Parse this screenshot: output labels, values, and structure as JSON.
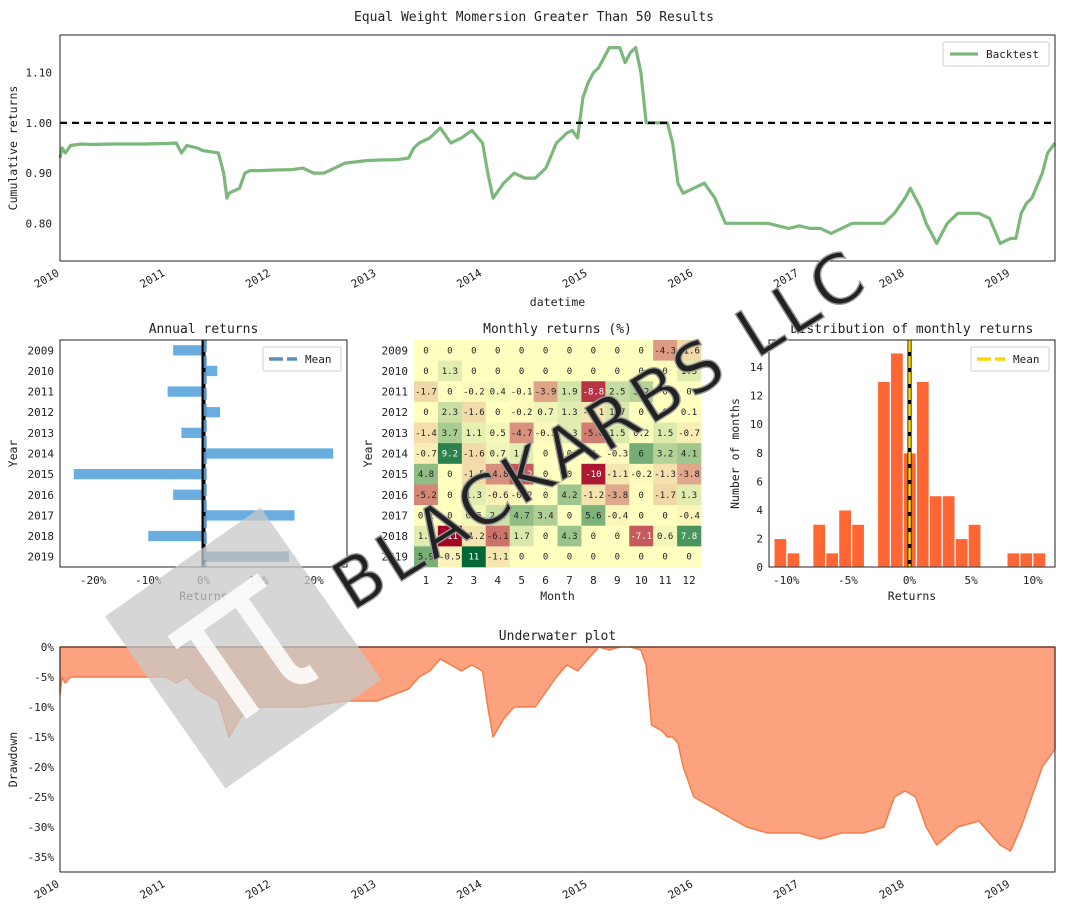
{
  "page_title": "Equal Weight Momersion Greater Than 50 Results",
  "watermark_text": "BLACKARBS LLC",
  "colors": {
    "backtest": "#7cb87c",
    "baseline": "#000000",
    "annual": "#6aaee0",
    "annual_mean": "#5a8fc0",
    "hist": "#ff6633",
    "hist_mean": "#ffd700",
    "underwater": "#fca27e",
    "underwater_edge": "#f47d4e",
    "heat_neg": "#a50026",
    "heat_mid": "#ffffbf",
    "heat_pos": "#006837"
  },
  "chart_data": [
    {
      "id": "cumulative",
      "type": "line",
      "title": "",
      "xlabel": "datetime",
      "ylabel": "Cumulative returns",
      "xlim": [
        2010.0,
        2019.42
      ],
      "ylim": [
        0.725,
        1.175
      ],
      "yticks": [
        0.8,
        0.9,
        1.0,
        1.1
      ],
      "ytick_labels": [
        "0.80",
        "0.90",
        "1.00",
        "1.10"
      ],
      "xticks": [
        2010,
        2011,
        2012,
        2013,
        2014,
        2015,
        2016,
        2017,
        2018,
        2019
      ],
      "xtick_labels": [
        "2010",
        "2011",
        "2012",
        "2013",
        "2014",
        "2015",
        "2016",
        "2017",
        "2018",
        "2019"
      ],
      "hline": 1.0,
      "legend": "top-right",
      "series": [
        {
          "name": "Backtest",
          "x": [
            2010.0,
            2010.02,
            2010.05,
            2010.1,
            2010.2,
            2010.3,
            2010.5,
            2010.8,
            2011.0,
            2011.1,
            2011.15,
            2011.2,
            2011.3,
            2011.35,
            2011.5,
            2011.55,
            2011.58,
            2011.6,
            2011.7,
            2011.75,
            2011.8,
            2011.9,
            2012.0,
            2012.2,
            2012.3,
            2012.4,
            2012.5,
            2012.7,
            2012.9,
            2013.0,
            2013.2,
            2013.3,
            2013.35,
            2013.4,
            2013.5,
            2013.55,
            2013.6,
            2013.7,
            2013.8,
            2013.9,
            2014.0,
            2014.05,
            2014.1,
            2014.2,
            2014.3,
            2014.4,
            2014.5,
            2014.6,
            2014.7,
            2014.75,
            2014.8,
            2014.85,
            2014.9,
            2014.95,
            2015.0,
            2015.05,
            2015.1,
            2015.2,
            2015.3,
            2015.35,
            2015.4,
            2015.45,
            2015.5,
            2015.55,
            2015.6,
            2015.7,
            2015.75,
            2015.8,
            2015.85,
            2015.9,
            2016.0,
            2016.1,
            2016.2,
            2016.3,
            2016.5,
            2016.7,
            2016.9,
            2017.0,
            2017.1,
            2017.2,
            2017.3,
            2017.5,
            2017.7,
            2017.8,
            2017.9,
            2018.0,
            2018.05,
            2018.1,
            2018.15,
            2018.2,
            2018.3,
            2018.4,
            2018.5,
            2018.6,
            2018.7,
            2018.8,
            2018.9,
            2019.0,
            2019.05,
            2019.1,
            2019.15,
            2019.2,
            2019.3,
            2019.35,
            2019.42
          ],
          "y": [
            0.93,
            0.95,
            0.94,
            0.955,
            0.958,
            0.957,
            0.958,
            0.958,
            0.959,
            0.96,
            0.94,
            0.955,
            0.95,
            0.945,
            0.94,
            0.9,
            0.85,
            0.86,
            0.87,
            0.9,
            0.905,
            0.905,
            0.906,
            0.907,
            0.91,
            0.9,
            0.9,
            0.92,
            0.925,
            0.926,
            0.927,
            0.93,
            0.95,
            0.96,
            0.97,
            0.98,
            0.99,
            0.96,
            0.97,
            0.985,
            0.96,
            0.9,
            0.85,
            0.88,
            0.9,
            0.89,
            0.89,
            0.91,
            0.96,
            0.97,
            0.98,
            0.985,
            0.97,
            1.05,
            1.08,
            1.1,
            1.11,
            1.15,
            1.15,
            1.12,
            1.14,
            1.15,
            1.1,
            1.0,
            1.0,
            1.0,
            1.0,
            0.96,
            0.88,
            0.86,
            0.87,
            0.88,
            0.85,
            0.8,
            0.8,
            0.8,
            0.79,
            0.795,
            0.79,
            0.79,
            0.78,
            0.8,
            0.8,
            0.8,
            0.82,
            0.85,
            0.87,
            0.85,
            0.83,
            0.8,
            0.76,
            0.8,
            0.82,
            0.82,
            0.82,
            0.81,
            0.76,
            0.77,
            0.77,
            0.82,
            0.84,
            0.85,
            0.9,
            0.94,
            0.96
          ]
        }
      ]
    },
    {
      "id": "annual",
      "type": "bar",
      "orientation": "horizontal",
      "title": "Annual returns",
      "xlabel": "Returns",
      "ylabel": "Year",
      "xlim": [
        -0.26,
        0.26
      ],
      "xticks": [
        -0.2,
        -0.1,
        0.0,
        0.1,
        0.2
      ],
      "xtick_labels": [
        "-20%",
        "-10%",
        "0%",
        "10%",
        "20%"
      ],
      "categories": [
        "2009",
        "2010",
        "2011",
        "2012",
        "2013",
        "2014",
        "2015",
        "2016",
        "2017",
        "2018",
        "2019"
      ],
      "values": [
        -0.055,
        0.025,
        -0.065,
        0.03,
        -0.04,
        0.235,
        -0.235,
        -0.055,
        0.165,
        -0.1,
        0.155
      ],
      "mean": 0.003,
      "legend_label": "Mean",
      "legend": "top-right"
    },
    {
      "id": "monthly",
      "type": "heatmap",
      "title": "Monthly returns (%)",
      "xlabel": "Month",
      "ylabel": "Year",
      "rows": [
        "2009",
        "2010",
        "2011",
        "2012",
        "2013",
        "2014",
        "2015",
        "2016",
        "2017",
        "2018",
        "2019"
      ],
      "cols": [
        "1",
        "2",
        "3",
        "4",
        "5",
        "6",
        "7",
        "8",
        "9",
        "10",
        "11",
        "12"
      ],
      "values": [
        [
          "0",
          "0",
          "0",
          "0",
          "0",
          "0",
          "0",
          "0",
          "0",
          "0",
          "-4.3",
          "-1.6"
        ],
        [
          "0",
          "1.3",
          "0",
          "0",
          "0",
          "0",
          "0",
          "0",
          "0",
          "0",
          "0",
          "1.3"
        ],
        [
          "-1.7",
          "0",
          "-0.2",
          "0.4",
          "-0.1",
          "-3.9",
          "1.9",
          "-8.8",
          "2.5",
          "3.2",
          "0",
          "0"
        ],
        [
          "0",
          "2.3",
          "-1.6",
          "0",
          "-0.2",
          "0.7",
          "1.3",
          "-1.1",
          "1.7",
          "0",
          "0",
          "0.1"
        ],
        [
          "-1.4",
          "3.7",
          "1.1",
          "0.5",
          "-4.7",
          "-0.3",
          "1.3",
          "-5.6",
          "1.5",
          "0.2",
          "1.5",
          "-0.7"
        ],
        [
          "-0.7",
          "9.2",
          "-1.6",
          "0.7",
          "1.2",
          "0",
          "0",
          "0",
          "-0.3",
          "6",
          "3.2",
          "4.1"
        ],
        [
          "4.8",
          "0",
          "-1.5",
          "-4.8",
          "-7.2",
          "0",
          "0",
          "-10",
          "-1.1",
          "-0.2",
          "-1.3",
          "-3.8"
        ],
        [
          "-5.2",
          "0",
          "1.3",
          "-0.6",
          "-0.2",
          "0",
          "4.2",
          "-1.2",
          "-3.8",
          "0",
          "-1.7",
          "1.3"
        ],
        [
          "0.1",
          "0",
          "0.5",
          "2.2",
          "4.7",
          "3.4",
          "0",
          "5.6",
          "-0.4",
          "0",
          "0",
          "-0.4"
        ],
        [
          "1.3",
          "-11",
          "-1.2",
          "-6.1",
          "1.7",
          "0",
          "4.3",
          "0",
          "0",
          "-7.1",
          "0.6",
          "7.8"
        ],
        [
          "5.9",
          "-0.5",
          "11",
          "-1.1",
          "0",
          "0",
          "0",
          "0",
          "0",
          "0",
          "0",
          "0"
        ]
      ]
    },
    {
      "id": "distribution",
      "type": "bar",
      "title": "Distribution of monthly returns",
      "xlabel": "Returns",
      "ylabel": "Number of months",
      "xlim": [
        -0.114,
        0.118
      ],
      "ylim": [
        0,
        15.9
      ],
      "xticks": [
        -0.1,
        -0.05,
        0.0,
        0.05,
        0.1
      ],
      "xtick_labels": [
        "-10%",
        "-5%",
        "0%",
        "5%",
        "10%"
      ],
      "yticks": [
        0,
        2,
        4,
        6,
        8,
        10,
        12,
        14
      ],
      "ytick_labels": [
        "0",
        "2",
        "4",
        "6",
        "8",
        "10",
        "12",
        "14"
      ],
      "bin_start": -0.11,
      "bin_width": 0.0105,
      "counts": [
        2,
        1,
        0,
        3,
        1,
        4,
        3,
        0,
        13,
        15,
        8,
        13,
        5,
        5,
        2,
        3,
        0,
        0,
        1,
        1,
        1
      ],
      "mean": 0.0,
      "legend_label": "Mean",
      "legend": "top-right"
    },
    {
      "id": "underwater",
      "type": "area",
      "title": "Underwater plot",
      "xlabel": "",
      "ylabel": "Drawdown",
      "xlim": [
        2010.0,
        2019.42
      ],
      "ylim": [
        -0.375,
        0.0
      ],
      "yticks": [
        0,
        -0.05,
        -0.1,
        -0.15,
        -0.2,
        -0.25,
        -0.3,
        -0.35
      ],
      "ytick_labels": [
        "0%",
        "-5%",
        "-10%",
        "-15%",
        "-20%",
        "-25%",
        "-30%",
        "-35%"
      ],
      "xticks": [
        2010,
        2011,
        2012,
        2013,
        2014,
        2015,
        2016,
        2017,
        2018,
        2019
      ],
      "xtick_labels": [
        "2010",
        "2011",
        "2012",
        "2013",
        "2014",
        "2015",
        "2016",
        "2017",
        "2018",
        "2019"
      ],
      "x": [
        2010.0,
        2010.02,
        2010.05,
        2010.1,
        2010.3,
        2010.6,
        2011.0,
        2011.1,
        2011.2,
        2011.3,
        2011.4,
        2011.5,
        2011.55,
        2011.6,
        2011.7,
        2011.8,
        2011.9,
        2012.0,
        2012.3,
        2012.5,
        2012.7,
        2013.0,
        2013.3,
        2013.4,
        2013.5,
        2013.6,
        2013.8,
        2013.9,
        2014.0,
        2014.05,
        2014.1,
        2014.2,
        2014.3,
        2014.5,
        2014.7,
        2014.8,
        2014.9,
        2015.0,
        2015.05,
        2015.1,
        2015.2,
        2015.3,
        2015.4,
        2015.5,
        2015.55,
        2015.6,
        2015.7,
        2015.75,
        2015.8,
        2015.85,
        2015.9,
        2016.0,
        2016.1,
        2016.3,
        2016.5,
        2016.7,
        2016.9,
        2017.0,
        2017.2,
        2017.4,
        2017.6,
        2017.8,
        2017.9,
        2018.0,
        2018.1,
        2018.2,
        2018.3,
        2018.5,
        2018.7,
        2018.9,
        2019.0,
        2019.05,
        2019.1,
        2019.2,
        2019.3,
        2019.42
      ],
      "y": [
        -0.08,
        -0.05,
        -0.06,
        -0.05,
        -0.05,
        -0.05,
        -0.05,
        -0.06,
        -0.05,
        -0.07,
        -0.08,
        -0.09,
        -0.12,
        -0.15,
        -0.12,
        -0.1,
        -0.1,
        -0.1,
        -0.1,
        -0.095,
        -0.09,
        -0.09,
        -0.07,
        -0.05,
        -0.04,
        -0.02,
        -0.04,
        -0.03,
        -0.04,
        -0.1,
        -0.15,
        -0.12,
        -0.1,
        -0.1,
        -0.05,
        -0.03,
        -0.04,
        -0.02,
        -0.01,
        0.0,
        -0.005,
        0.0,
        0.0,
        -0.005,
        -0.03,
        -0.13,
        -0.14,
        -0.15,
        -0.15,
        -0.16,
        -0.2,
        -0.25,
        -0.26,
        -0.28,
        -0.3,
        -0.31,
        -0.31,
        -0.31,
        -0.32,
        -0.31,
        -0.31,
        -0.3,
        -0.25,
        -0.24,
        -0.25,
        -0.3,
        -0.33,
        -0.3,
        -0.29,
        -0.33,
        -0.34,
        -0.32,
        -0.3,
        -0.25,
        -0.2,
        -0.17
      ]
    }
  ]
}
